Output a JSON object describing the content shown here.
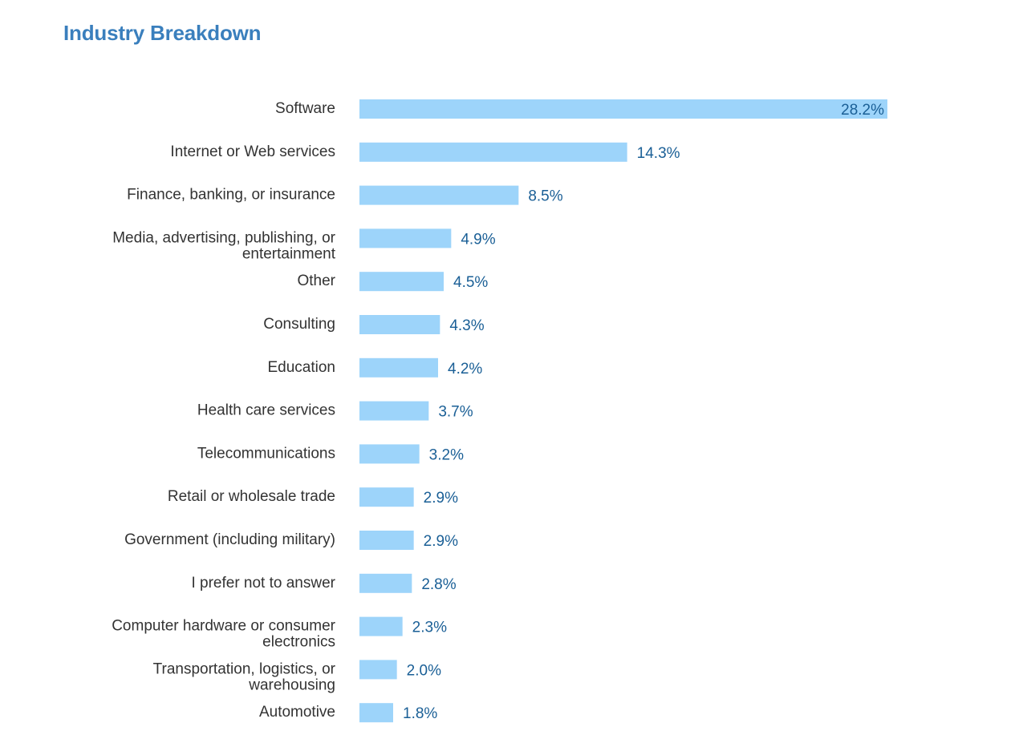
{
  "chart_data": {
    "type": "bar",
    "orientation": "horizontal",
    "title": "Industry Breakdown",
    "xlabel": "",
    "ylabel": "",
    "grid": false,
    "unit": "%",
    "xlim": [
      0,
      28.2
    ],
    "bar_color": "#9dd4fa",
    "value_label_color": "#1a5f96",
    "title_color": "#3a7fbd",
    "label_color": "#333333",
    "categories": [
      "Software",
      "Internet or Web services",
      "Finance, banking, or insurance",
      "Media, advertising, publishing, or entertainment",
      "Other",
      "Consulting",
      "Education",
      "Health care services",
      "Telecommunications",
      "Retail or wholesale trade",
      "Government (including military)",
      "I prefer not to answer",
      "Computer hardware or consumer electronics",
      "Transportation, logistics, or warehousing",
      "Automotive"
    ],
    "category_lines": [
      [
        "Software"
      ],
      [
        "Internet or Web services"
      ],
      [
        "Finance, banking, or insurance"
      ],
      [
        "Media, advertising, publishing, or",
        "entertainment"
      ],
      [
        "Other"
      ],
      [
        "Consulting"
      ],
      [
        "Education"
      ],
      [
        "Health care services"
      ],
      [
        "Telecommunications"
      ],
      [
        "Retail or wholesale trade"
      ],
      [
        "Government (including military)"
      ],
      [
        "I prefer not to answer"
      ],
      [
        "Computer hardware or consumer",
        "electronics"
      ],
      [
        "Transportation, logistics, or",
        "warehousing"
      ],
      [
        "Automotive"
      ]
    ],
    "values": [
      28.2,
      14.3,
      8.5,
      4.9,
      4.5,
      4.3,
      4.2,
      3.7,
      3.2,
      2.9,
      2.9,
      2.8,
      2.3,
      2.0,
      1.8
    ],
    "value_labels": [
      "28.2%",
      "14.3%",
      "8.5%",
      "4.9%",
      "4.5%",
      "4.3%",
      "4.2%",
      "3.7%",
      "3.2%",
      "2.9%",
      "2.9%",
      "2.8%",
      "2.3%",
      "2.0%",
      "1.8%"
    ]
  }
}
